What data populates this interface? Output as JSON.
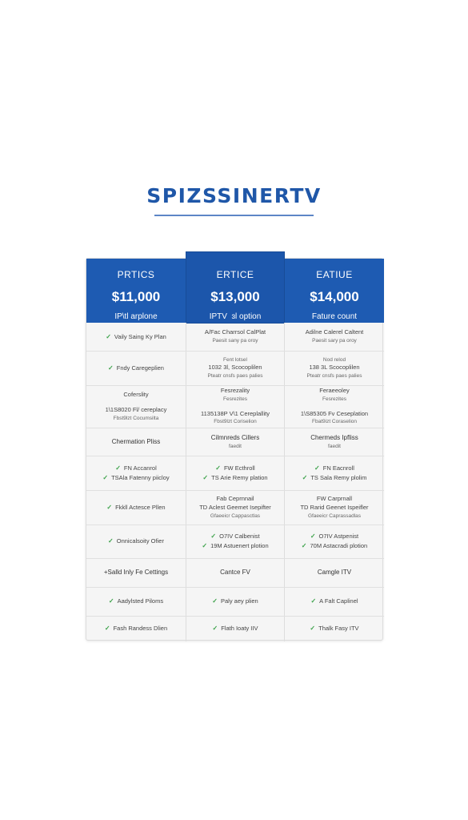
{
  "brand": {
    "title": "SPIZSSINERTV"
  },
  "columns": [
    {
      "name": "PRTICS",
      "price": "$11,000",
      "subtitle": "IP\\tl arplone"
    },
    {
      "name": "ERTICE",
      "price": "$13,000",
      "subtitle": "IPTV  ɜl option"
    },
    {
      "name": "EATIUE",
      "price": "$14,000",
      "subtitle": "Fature count"
    }
  ],
  "rows": [
    [
      {
        "lines": [
          {
            "text": "Vaily Saing Ky Plan",
            "check": true
          }
        ]
      },
      {
        "lines": [
          {
            "text": "A/Fac Charrsol CalPlat"
          },
          {
            "text": "Paesit sany pa oroy",
            "small": true
          }
        ]
      },
      {
        "lines": [
          {
            "text": "Adilne Calerel Caltent"
          },
          {
            "text": "Paesit sary pa oroy",
            "small": true
          }
        ]
      }
    ],
    [
      {
        "lines": [
          {
            "text": "Fndy Caregeplien",
            "check": true
          }
        ]
      },
      {
        "lines": [
          {
            "text": "Fent lotsel",
            "small": true
          },
          {
            "text": "1032 3l, Scocoplilen"
          },
          {
            "text": "Pteatr cnsfs paes palies",
            "small": true
          }
        ]
      },
      {
        "lines": [
          {
            "text": "Nod relod",
            "small": true
          },
          {
            "text": "138 3L Scocoplilen"
          },
          {
            "text": "Pteatr cnsfs paes palies",
            "small": true
          }
        ]
      }
    ],
    [
      {
        "lines": [
          {
            "text": "Coferslity"
          },
          {
            "text": "1\\1S8020 Fl/ cereplacy",
            "gap": true
          },
          {
            "text": "Fbst9lzt Cocumsilta",
            "small": true
          }
        ]
      },
      {
        "lines": [
          {
            "text": "Fesrezality"
          },
          {
            "text": "Fesrezites",
            "small": true
          },
          {
            "text": "1135138P V\\1 Cereplallity",
            "gap": true
          },
          {
            "text": "Fbst9lzt Coriselion",
            "small": true
          }
        ]
      },
      {
        "lines": [
          {
            "text": "Feraeeoley"
          },
          {
            "text": "Fesrezites",
            "small": true
          },
          {
            "text": "1\\S85305 Fv Ceseplation",
            "gap": true
          },
          {
            "text": "Fbat9izt Coraselion",
            "small": true
          }
        ]
      }
    ],
    [
      {
        "lines": [
          {
            "text": "Chermation Pliss",
            "strong": true
          }
        ]
      },
      {
        "lines": [
          {
            "text": "Cilmnreds Cillers",
            "strong": true
          },
          {
            "text": "faedit",
            "small": true
          }
        ]
      },
      {
        "lines": [
          {
            "text": "Chermeds Ipfliss",
            "strong": true
          },
          {
            "text": "faedit",
            "small": true
          }
        ]
      }
    ],
    [
      {
        "lines": [
          {
            "text": "FN Accanrol",
            "check": true
          },
          {
            "text": "TSAla Fatenny piicloy",
            "check": true
          }
        ]
      },
      {
        "lines": [
          {
            "text": "FW Ecthroll",
            "check": true
          },
          {
            "text": "TS Arie Remy plation",
            "check": true
          }
        ]
      },
      {
        "lines": [
          {
            "text": "FN Eacnroll",
            "check": true
          },
          {
            "text": "TS Sala Remy plolim",
            "check": true
          }
        ]
      }
    ],
    [
      {
        "lines": [
          {
            "text": "Fkkll Actesce Pllen",
            "check": true
          }
        ]
      },
      {
        "lines": [
          {
            "text": "Fab Ceprnnail"
          },
          {
            "text": "TD Aclest Geemet Isepifter"
          },
          {
            "text": "Gfaeeicr Cappasctlas",
            "small": true
          }
        ]
      },
      {
        "lines": [
          {
            "text": "FW Carprnall"
          },
          {
            "text": "TD Rarid Geenet Ispeifler"
          },
          {
            "text": "Gfaeeicr Caprassadlas",
            "small": true
          }
        ]
      }
    ],
    [
      {
        "lines": [
          {
            "text": "Onnicalsoity Ofier",
            "check": true
          }
        ]
      },
      {
        "lines": [
          {
            "text": "O7IV Calbenist",
            "check": true
          },
          {
            "text": "19M Astuenert plotion",
            "check": true
          }
        ]
      },
      {
        "lines": [
          {
            "text": "O7IV Astpenist",
            "check": true
          },
          {
            "text": "70M Astacradi plotion",
            "check": true
          }
        ]
      }
    ],
    [
      {
        "lines": [
          {
            "text": "+Salld Inly Fe Cettings",
            "strong": true
          }
        ]
      },
      {
        "lines": [
          {
            "text": "Cantce FV",
            "strong": true
          }
        ]
      },
      {
        "lines": [
          {
            "text": "Camgle ITV",
            "strong": true
          }
        ]
      }
    ],
    [
      {
        "lines": [
          {
            "text": "Aadylsted Piloms",
            "check": true
          }
        ]
      },
      {
        "lines": [
          {
            "text": "Paly aey plien",
            "check": true
          }
        ]
      },
      {
        "lines": [
          {
            "text": "A Falt Caplinel",
            "check": true
          }
        ]
      }
    ],
    [
      {
        "lines": [
          {
            "text": "Fash Randess Dlien",
            "check": true
          }
        ]
      },
      {
        "lines": [
          {
            "text": "Flath Ioaty IIV",
            "check": true
          }
        ]
      },
      {
        "lines": [
          {
            "text": "Thalk Fasy ITV",
            "check": true
          }
        ]
      }
    ]
  ]
}
